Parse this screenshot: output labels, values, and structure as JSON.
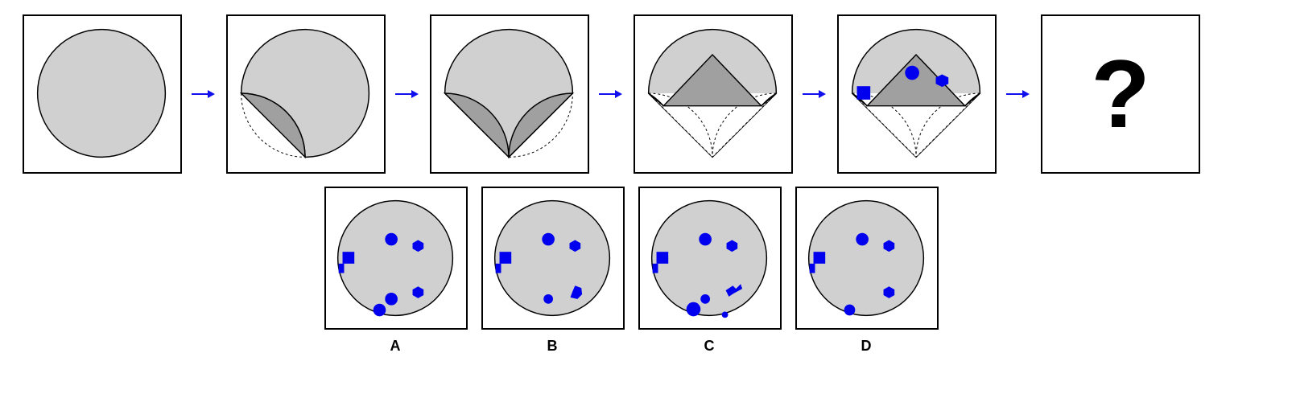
{
  "sequence_panel_count": 6,
  "question_mark": "?",
  "colors": {
    "paper": "#d0d0d0",
    "folded": "#a0a0a0",
    "dot": "#0000ee",
    "arrow": "#1010ee",
    "outline": "#000000"
  },
  "options": [
    {
      "label": "A"
    },
    {
      "label": "B"
    },
    {
      "label": "C"
    },
    {
      "label": "D"
    }
  ]
}
